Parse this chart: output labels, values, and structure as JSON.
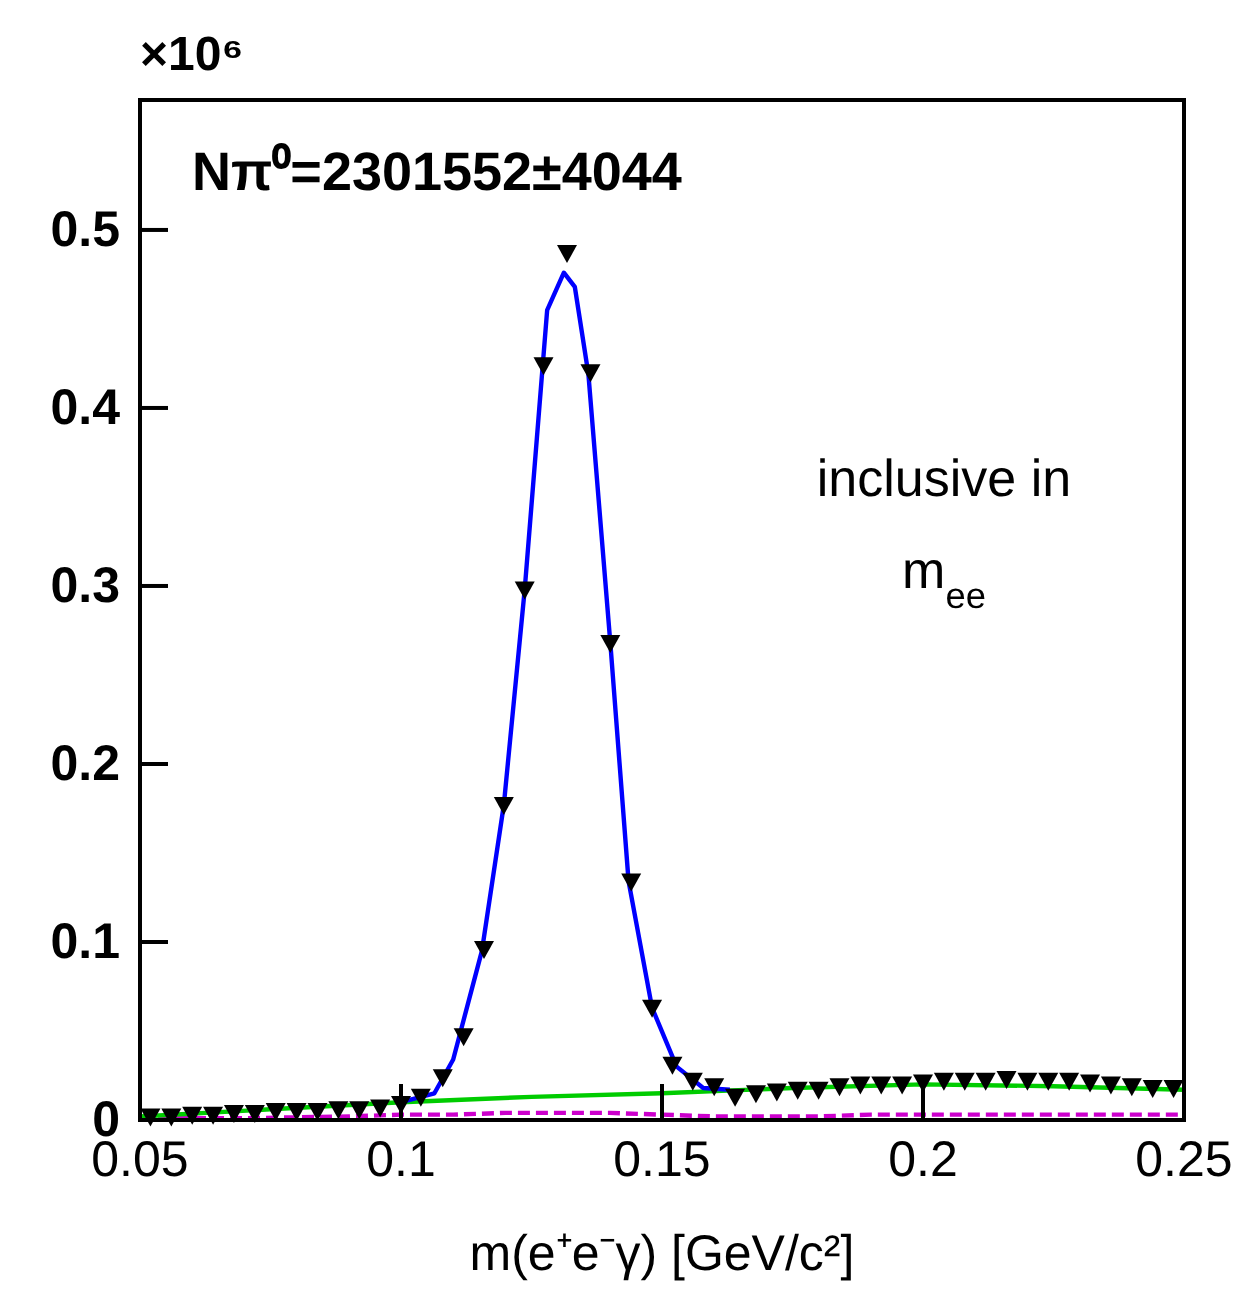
{
  "chart_data": {
    "type": "scatter",
    "title": "Nπ⁰=2301552±4044",
    "xlabel": "m(e⁺e⁻γ)  [GeV/c²]",
    "annotations": [
      "×10⁶",
      "inclusive in\nm$_{ee}$"
    ],
    "xlim": [
      0.05,
      0.25
    ],
    "xticks": [
      0.05,
      0.1,
      0.15,
      0.2,
      0.25
    ],
    "ylim": [
      0,
      0.573
    ],
    "yticks": [
      0,
      0.1,
      0.2,
      0.3,
      0.4,
      0.5
    ],
    "grid": false,
    "series": [
      {
        "type": "line",
        "color": "#cc00cc",
        "line_style": "dashed",
        "x": [
          0.05,
          0.07,
          0.09,
          0.1,
          0.11,
          0.12,
          0.13,
          0.14,
          0.15,
          0.16,
          0.17,
          0.18,
          0.19,
          0.2,
          0.21,
          0.22,
          0.23,
          0.24,
          0.25
        ],
        "values": [
          0.001,
          0.001,
          0.002,
          0.003,
          0.003,
          0.004,
          0.004,
          0.004,
          0.003,
          0.002,
          0.002,
          0.002,
          0.003,
          0.003,
          0.003,
          0.003,
          0.003,
          0.003,
          0.003
        ]
      },
      {
        "type": "line",
        "color": "#00cc00",
        "line_style": "solid",
        "x": [
          0.05,
          0.075,
          0.1,
          0.125,
          0.15,
          0.175,
          0.2,
          0.225,
          0.25
        ],
        "values": [
          0.002,
          0.006,
          0.01,
          0.013,
          0.015,
          0.018,
          0.02,
          0.019,
          0.017
        ]
      },
      {
        "type": "line",
        "color": "#0000ff",
        "line_style": "solid",
        "x": [
          0.1,
          0.1064,
          0.11,
          0.1155,
          0.1197,
          0.1237,
          0.128,
          0.1312,
          0.1333,
          0.1359,
          0.1401,
          0.1436,
          0.1481,
          0.1528,
          0.1579,
          0.163
        ],
        "values": [
          0.01,
          0.015,
          0.034,
          0.095,
          0.177,
          0.298,
          0.455,
          0.476,
          0.468,
          0.419,
          0.268,
          0.134,
          0.063,
          0.03,
          0.018,
          0.017
        ]
      },
      {
        "color": "#000000",
        "marker": "triangle",
        "x": [
          0.052,
          0.056,
          0.06,
          0.064,
          0.068,
          0.072,
          0.076,
          0.08,
          0.084,
          0.088,
          0.092,
          0.096,
          0.1,
          0.1038,
          0.108,
          0.112,
          0.1159,
          0.1197,
          0.1237,
          0.1273,
          0.1318,
          0.1363,
          0.1401,
          0.1441,
          0.1481,
          0.152,
          0.1559,
          0.16,
          0.164,
          0.168,
          0.172,
          0.176,
          0.18,
          0.184,
          0.188,
          0.192,
          0.196,
          0.2,
          0.204,
          0.208,
          0.212,
          0.216,
          0.22,
          0.224,
          0.228,
          0.232,
          0.236,
          0.24,
          0.244,
          0.248
        ],
        "values": [
          0.002,
          0.002,
          0.003,
          0.003,
          0.004,
          0.004,
          0.005,
          0.005,
          0.005,
          0.006,
          0.006,
          0.007,
          0.009,
          0.013,
          0.024,
          0.047,
          0.096,
          0.177,
          0.298,
          0.424,
          0.487,
          0.42,
          0.268,
          0.134,
          0.063,
          0.031,
          0.022,
          0.019,
          0.013,
          0.015,
          0.016,
          0.017,
          0.017,
          0.019,
          0.02,
          0.02,
          0.02,
          0.021,
          0.022,
          0.022,
          0.022,
          0.023,
          0.022,
          0.022,
          0.022,
          0.021,
          0.02,
          0.019,
          0.018,
          0.018
        ]
      }
    ]
  }
}
